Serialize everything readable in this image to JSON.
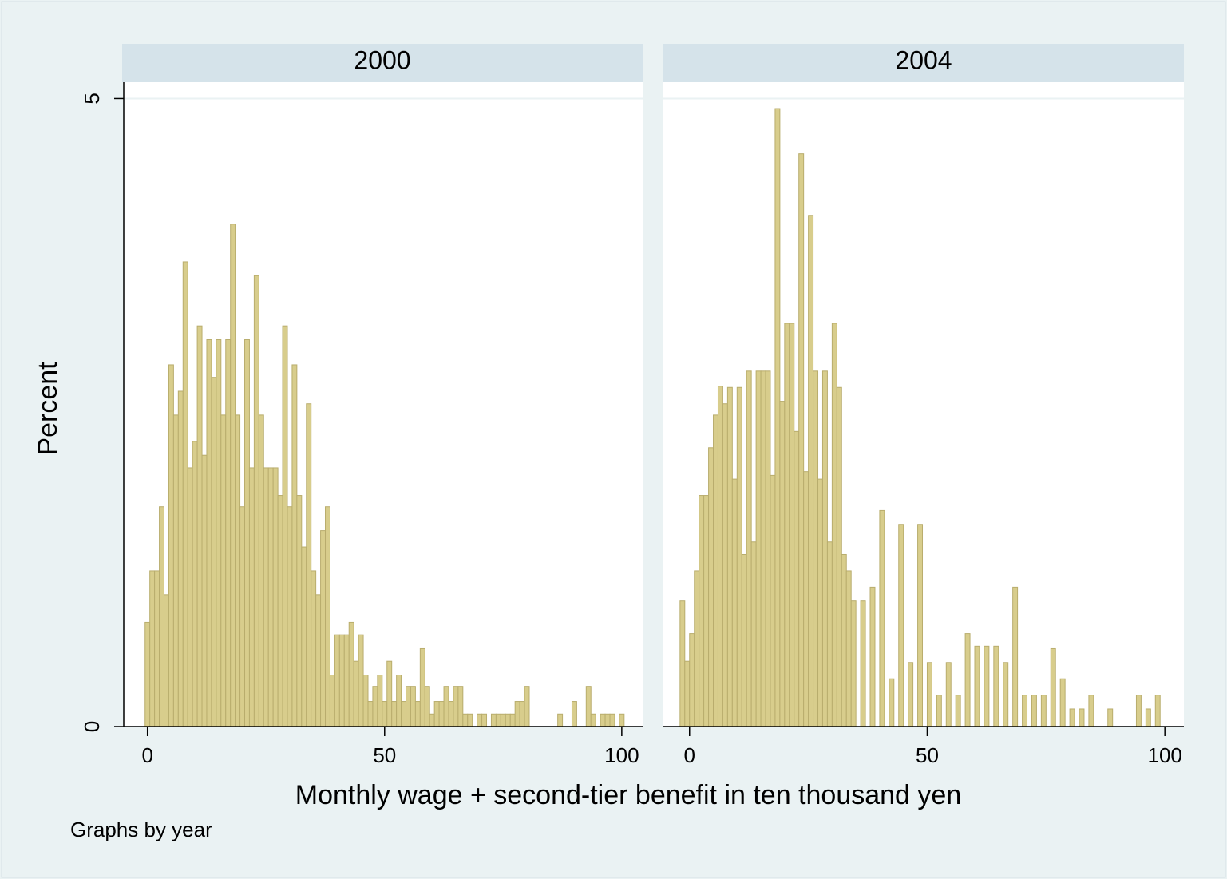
{
  "figure": {
    "ylabel": "Percent",
    "xlabel": "Monthly wage + second-tier benefit in ten thousand yen",
    "note": "Graphs by year"
  },
  "chart_data": [
    {
      "type": "histogram",
      "title": "2000",
      "color": "#d8cd8c",
      "bins": [
        -0.5,
        0.5,
        1.5,
        2.5,
        3.5,
        4.5,
        5.5,
        6.5,
        7.5,
        8.5,
        9.5,
        10.5,
        11.5,
        12.5,
        13.5,
        14.5,
        15.5,
        16.5,
        17.5,
        18.5,
        19.5,
        20.5,
        21.5,
        22.5,
        23.5,
        24.5,
        25.5,
        26.5,
        27.5,
        28.5,
        29.5,
        30.5,
        31.5,
        32.5,
        33.5,
        34.5,
        35.5,
        36.5,
        37.5,
        38.5,
        39.5,
        40.5,
        41.5,
        42.5,
        43.5,
        44.5,
        45.5,
        46.5,
        47.5,
        48.5,
        49.5,
        50.5,
        51.5,
        52.5,
        53.5,
        54.5,
        55.5,
        56.5,
        57.5,
        58.5,
        59.5,
        60.5,
        61.5,
        62.5,
        63.5,
        64.5,
        65.5,
        66.5,
        67.5,
        68.5,
        69.5,
        70.5,
        71.5,
        72.5,
        73.5,
        74.5,
        75.5,
        76.5,
        77.5,
        78.5,
        79.5,
        80.5,
        81.5,
        82.5,
        83.5,
        84.5,
        85.5,
        86.5,
        87.5,
        88.5,
        89.5,
        90.5,
        91.5,
        92.5,
        93.5,
        94.5,
        95.5,
        96.5,
        97.5,
        98.5,
        99.5,
        100.5
      ],
      "values": [
        0.83,
        1.24,
        1.24,
        1.75,
        1.05,
        2.88,
        2.48,
        2.67,
        3.7,
        2.06,
        2.27,
        3.19,
        2.16,
        3.08,
        2.78,
        3.08,
        2.48,
        3.08,
        4.0,
        2.48,
        1.75,
        3.08,
        2.06,
        3.59,
        2.48,
        2.06,
        2.06,
        2.06,
        1.84,
        3.19,
        1.75,
        2.88,
        1.84,
        1.43,
        2.57,
        1.24,
        1.05,
        1.56,
        1.75,
        0.41,
        0.73,
        0.73,
        0.73,
        0.83,
        0.52,
        0.73,
        0.41,
        0.2,
        0.32,
        0.41,
        0.2,
        0.52,
        0.2,
        0.41,
        0.2,
        0.32,
        0.32,
        0.2,
        0.62,
        0.32,
        0.1,
        0.2,
        0.2,
        0.32,
        0.2,
        0.32,
        0.32,
        0.1,
        0.1,
        0,
        0.1,
        0.1,
        0,
        0.1,
        0.1,
        0.1,
        0.1,
        0.1,
        0.2,
        0.2,
        0.32,
        0,
        0,
        0,
        0,
        0,
        0,
        0.1,
        0,
        0,
        0.2,
        0,
        0,
        0.32,
        0.1,
        0,
        0.1,
        0.1,
        0.1,
        0,
        0.1
      ],
      "xlim": [
        -5,
        104.4
      ],
      "ylim": [
        0,
        5.13
      ],
      "xticks": [
        0,
        50,
        100
      ],
      "yticks": [
        0,
        5
      ],
      "grid": true
    },
    {
      "type": "histogram",
      "title": "2004",
      "color": "#d8cd8c",
      "bins": [
        -2,
        -1,
        0,
        1,
        2,
        3,
        4,
        5,
        6,
        7,
        8,
        9,
        10,
        11,
        12,
        13,
        14,
        15,
        16,
        17,
        18,
        19,
        20,
        21,
        22,
        23,
        24,
        25,
        26,
        27,
        28,
        29,
        30,
        31,
        32,
        33,
        34,
        35,
        36,
        37,
        38,
        39,
        40,
        41,
        42,
        43,
        44,
        45,
        46,
        47,
        48,
        49,
        50,
        51,
        52,
        53,
        54,
        55,
        56,
        57,
        58,
        59,
        60,
        61,
        62,
        63,
        64,
        65,
        66,
        67,
        68,
        69,
        70,
        71,
        72,
        73,
        74,
        75,
        76,
        77,
        78,
        79,
        80,
        81,
        82,
        83,
        84,
        85,
        86,
        87,
        88,
        89,
        90,
        91,
        92,
        93,
        94,
        95,
        96,
        97,
        98,
        99,
        100
      ],
      "values": [
        1.0,
        0.52,
        0.74,
        1.24,
        1.84,
        1.84,
        2.22,
        2.48,
        2.71,
        2.57,
        2.7,
        1.97,
        2.7,
        1.37,
        2.83,
        1.47,
        2.83,
        2.83,
        2.83,
        2.0,
        4.92,
        2.59,
        3.21,
        3.21,
        2.35,
        4.56,
        2.03,
        4.07,
        2.83,
        1.97,
        2.83,
        1.47,
        3.21,
        2.7,
        1.37,
        1.24,
        1.0,
        0,
        1.0,
        0,
        1.11,
        0,
        1.72,
        0,
        0.38,
        0,
        1.61,
        0,
        0.51,
        0,
        1.61,
        0,
        0.51,
        0,
        0.25,
        0,
        0.51,
        0,
        0.25,
        0,
        0.74,
        0,
        0.64,
        0,
        0.64,
        0,
        0.64,
        0,
        0.51,
        0,
        1.11,
        0,
        0.25,
        0,
        0.25,
        0,
        0.25,
        0,
        0.62,
        0,
        0.38,
        0,
        0.14,
        0,
        0.14,
        0,
        0.25,
        0,
        0,
        0,
        0.14,
        0,
        0,
        0,
        0,
        0,
        0.25,
        0,
        0.14,
        0,
        0.25,
        0
      ],
      "xlim": [
        -5.5,
        104
      ],
      "ylim": [
        0,
        5.13
      ],
      "xticks": [
        0,
        50,
        100
      ],
      "yticks": [
        0,
        5
      ],
      "grid": true
    }
  ]
}
